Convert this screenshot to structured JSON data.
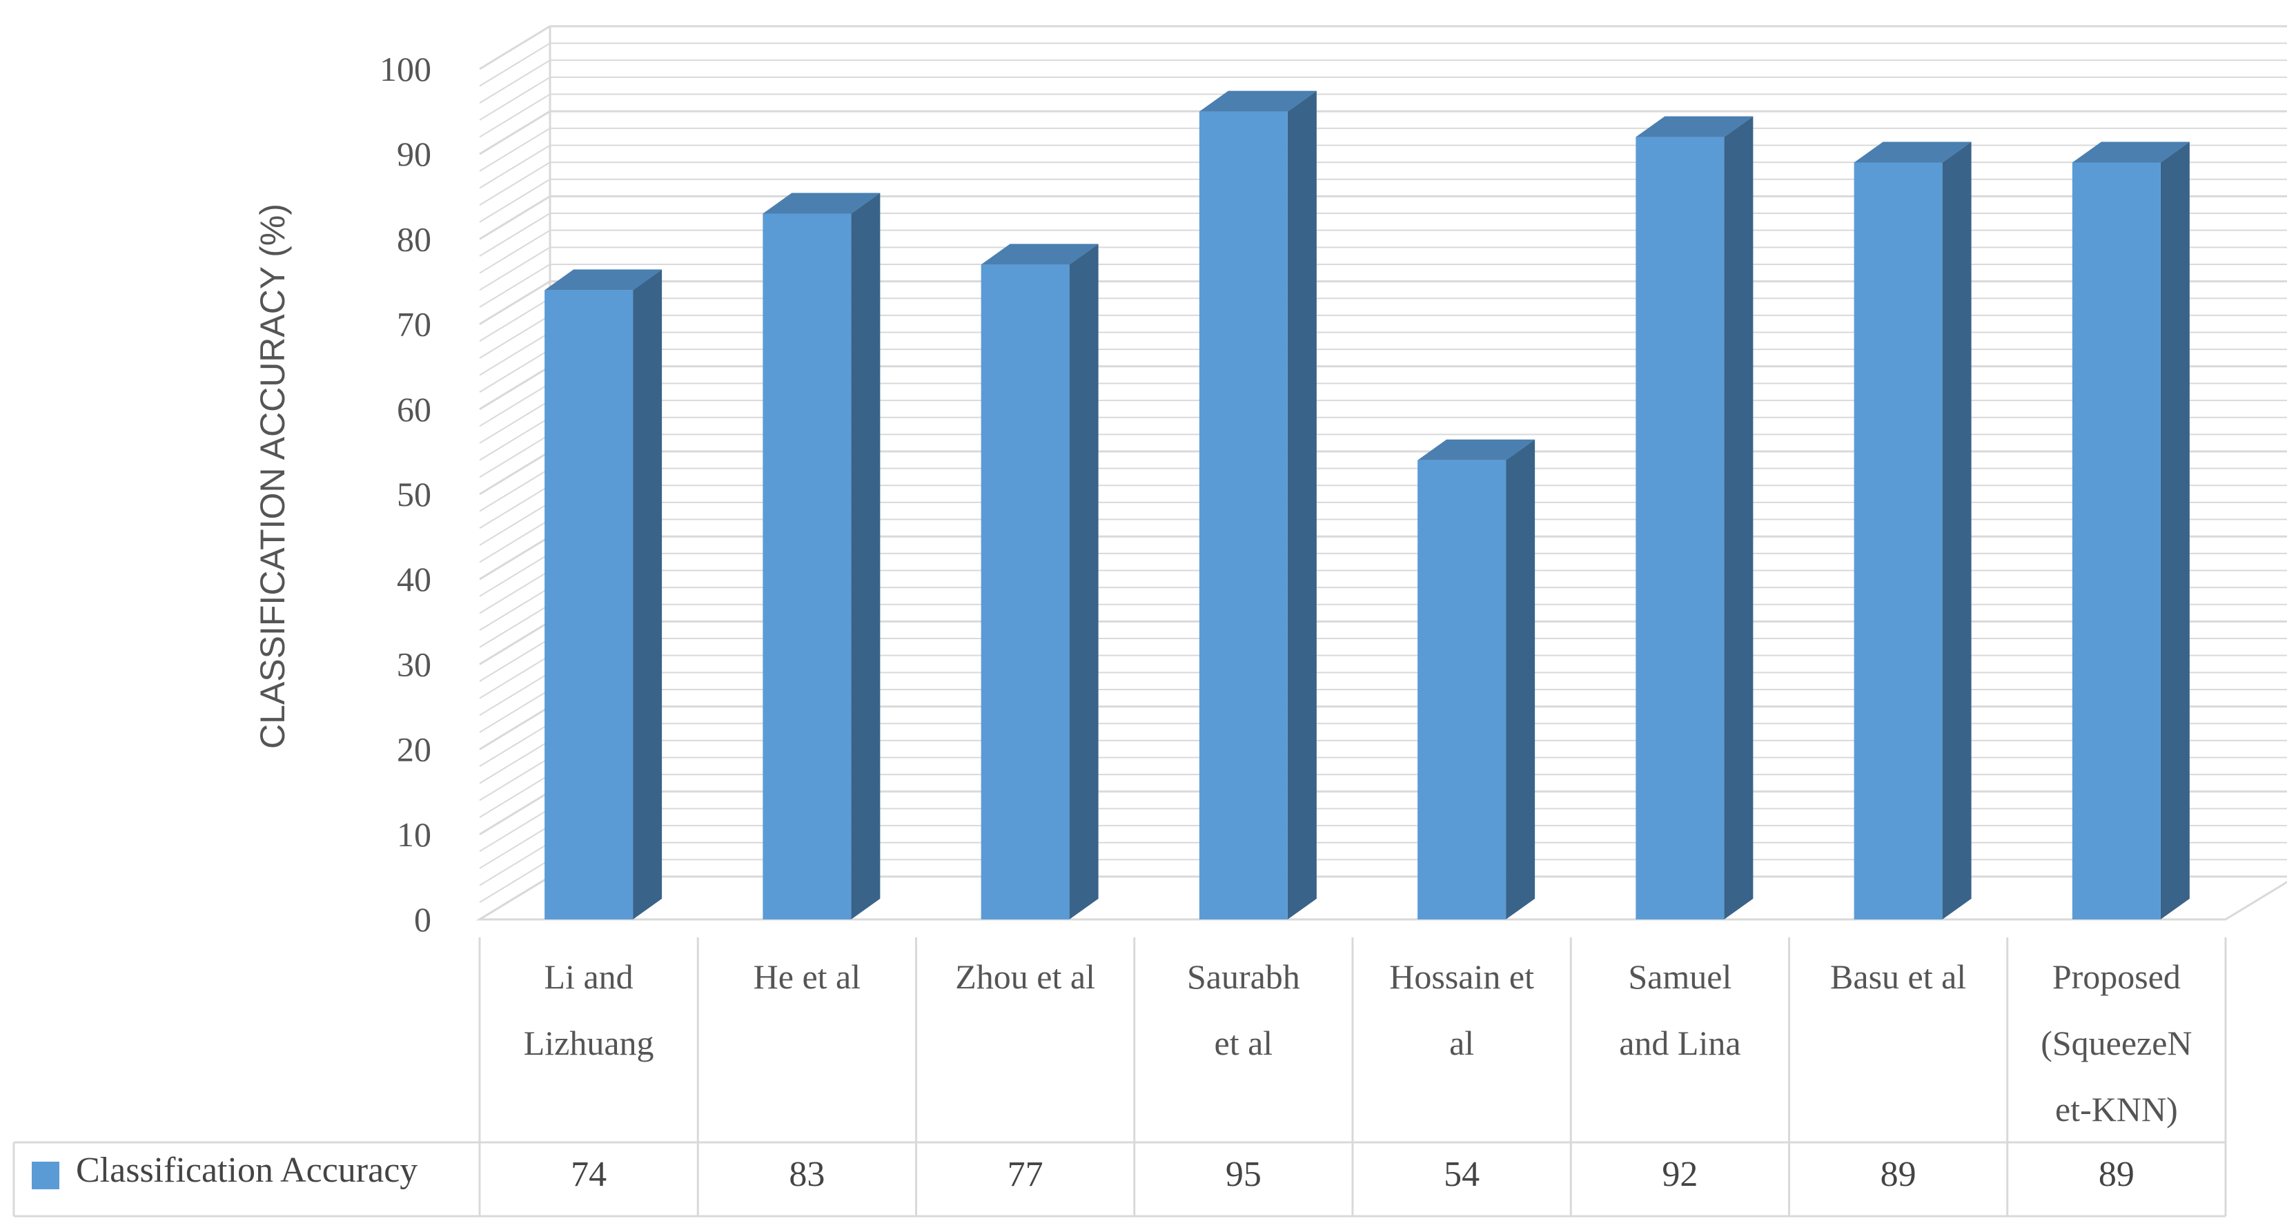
{
  "chart_data": {
    "type": "bar",
    "style": "3d-column-with-data-table",
    "title": "",
    "xlabel": "",
    "ylabel": "CLASSIFICATION ACCURACY (%)",
    "ylim": [
      0,
      100
    ],
    "yticks": [
      0,
      10,
      20,
      30,
      40,
      50,
      60,
      70,
      80,
      90,
      100
    ],
    "grid": true,
    "categories": [
      [
        "Li and",
        "Lizhuang"
      ],
      [
        "He et al"
      ],
      [
        "Zhou et al"
      ],
      [
        "Saurabh",
        "et al"
      ],
      [
        "Hossain et",
        "al"
      ],
      [
        "Samuel",
        "and Lina"
      ],
      [
        "Basu et al"
      ],
      [
        "Proposed",
        "(SqueezeN",
        "et-KNN)"
      ]
    ],
    "series": [
      {
        "name": "Classification Accuracy",
        "values": [
          74,
          83,
          77,
          95,
          54,
          92,
          89,
          89
        ],
        "color_front": "#5B9BD5",
        "color_top": "#4A7FB0",
        "color_side": "#3A6389"
      }
    ],
    "colors": {
      "grid": "#D9D9D9",
      "table_border": "#D9D9D9",
      "text": "#555555"
    }
  }
}
